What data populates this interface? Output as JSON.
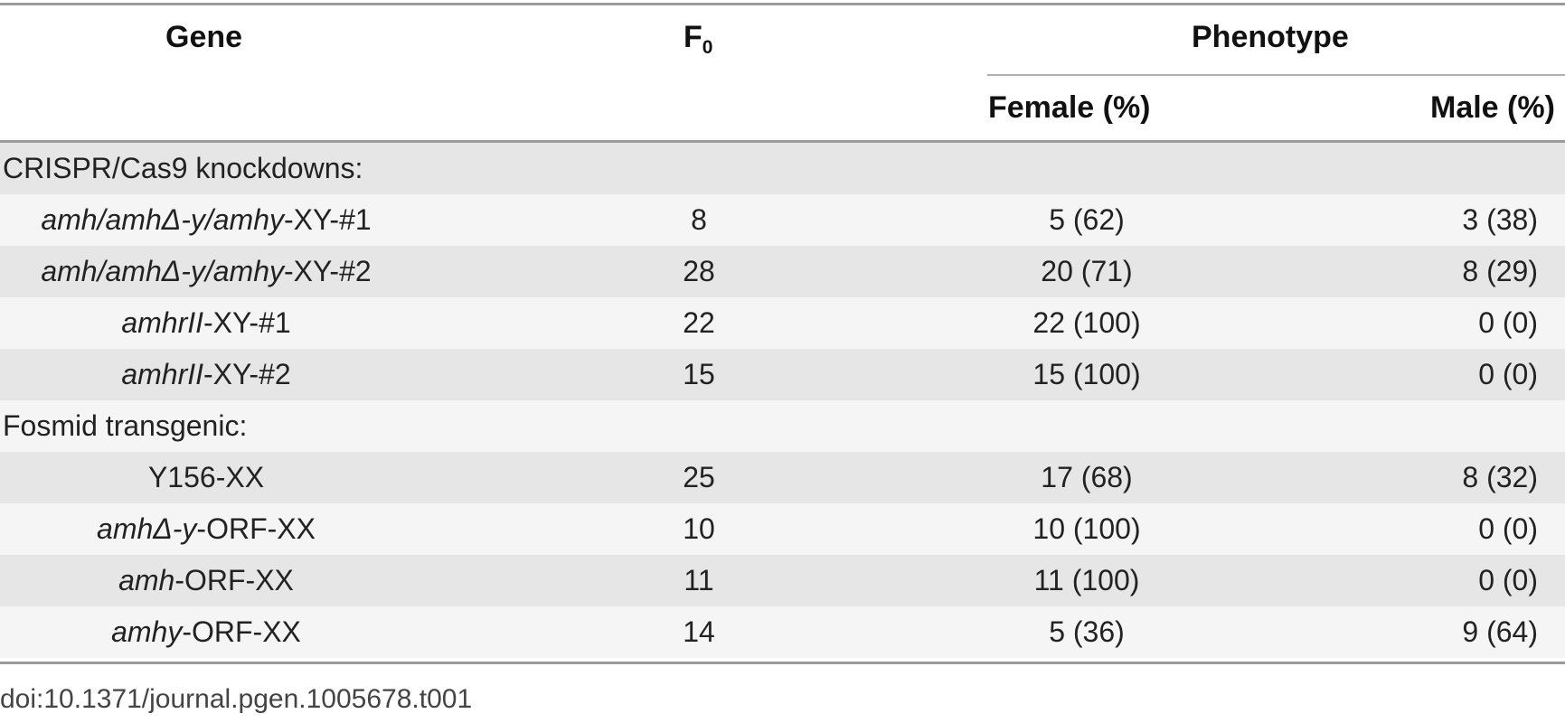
{
  "header": {
    "gene": "Gene",
    "f0_base": "F",
    "f0_sub": "0",
    "phenotype": "Phenotype",
    "female": "Female (%)",
    "male": "Male (%)"
  },
  "sections": [
    {
      "label": "CRISPR/Cas9 knockdowns:"
    },
    {
      "label": "Fosmid transgenic:"
    }
  ],
  "rows": [
    {
      "gene_italic": "amh/amhΔ-y/amhy",
      "gene_plain": "-XY-#1",
      "f0": "8",
      "female": "5 (62)",
      "male": "3 (38)"
    },
    {
      "gene_italic": "amh/amhΔ-y/amhy",
      "gene_plain": "-XY-#2",
      "f0": "28",
      "female": "20 (71)",
      "male": "8 (29)"
    },
    {
      "gene_italic": "amhrII",
      "gene_plain": "-XY-#1",
      "f0": "22",
      "female": "22 (100)",
      "male": "0 (0)"
    },
    {
      "gene_italic": "amhrII",
      "gene_plain": "-XY-#2",
      "f0": "15",
      "female": "15 (100)",
      "male": "0 (0)"
    },
    {
      "gene_italic": "",
      "gene_plain": "Y156-XX",
      "f0": "25",
      "female": "17 (68)",
      "male": "8 (32)"
    },
    {
      "gene_italic": "amhΔ-y",
      "gene_plain": "-ORF-XX",
      "f0": "10",
      "female": "10 (100)",
      "male": "0 (0)"
    },
    {
      "gene_italic": "amh",
      "gene_plain": "-ORF-XX",
      "f0": "11",
      "female": "11 (100)",
      "male": "0 (0)"
    },
    {
      "gene_italic": "amhy",
      "gene_plain": "-ORF-XX",
      "f0": "14",
      "female": "5 (36)",
      "male": "9 (64)"
    }
  ],
  "footer": {
    "doi": "doi:10.1371/journal.pgen.1005678.t001"
  }
}
